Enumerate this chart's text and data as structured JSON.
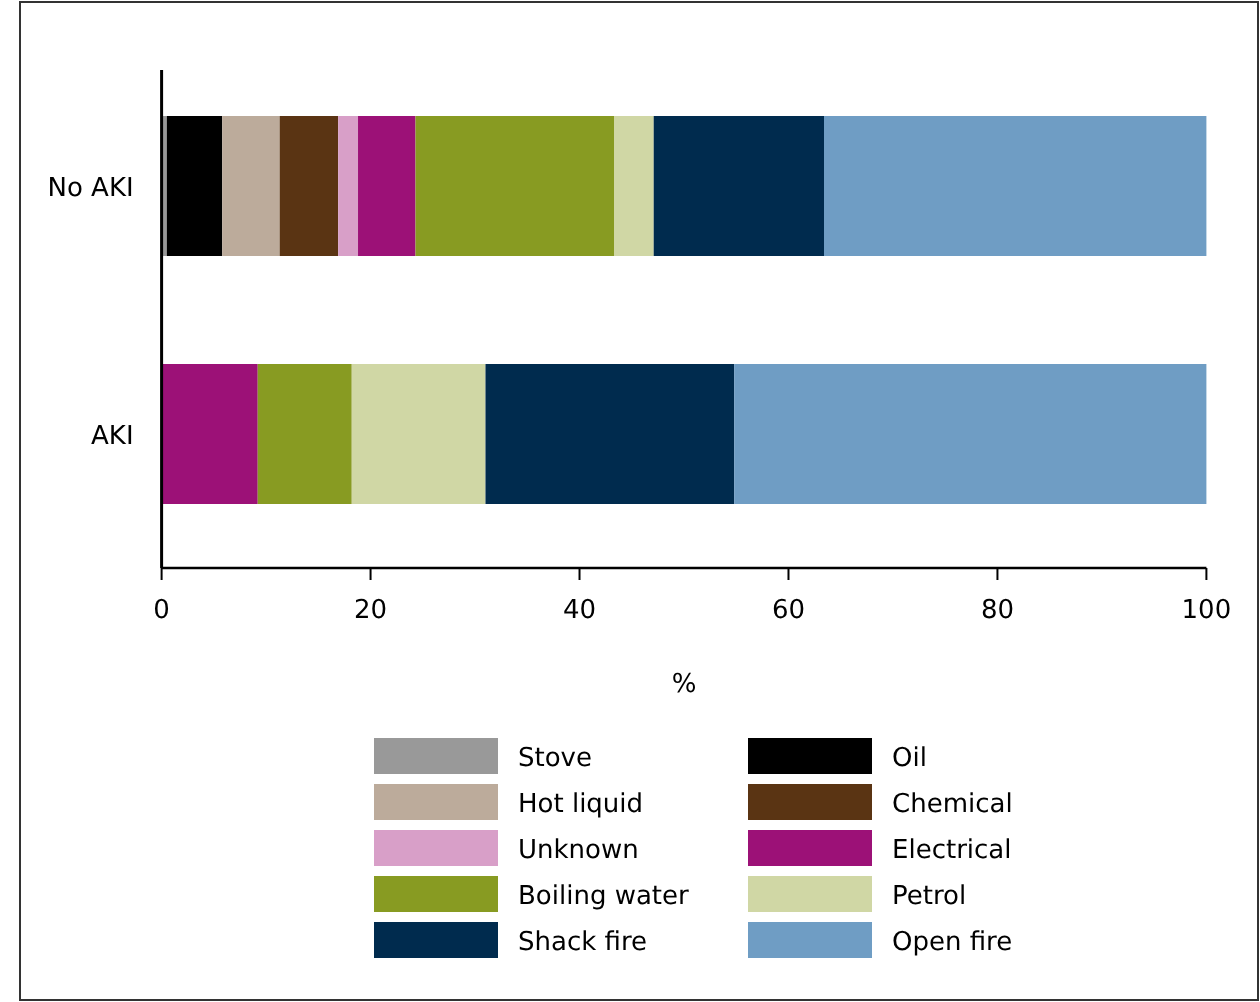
{
  "chart_data": {
    "type": "bar",
    "orientation": "horizontal",
    "stacked": true,
    "categories": [
      "No AKI",
      "AKI"
    ],
    "xlabel": "%",
    "xlim": [
      0,
      100
    ],
    "xticks": [
      0,
      20,
      40,
      60,
      80,
      100
    ],
    "legend": "bottom",
    "grid": false,
    "series": [
      {
        "name": "Stove",
        "color": "#999999",
        "values": [
          0.5,
          0
        ]
      },
      {
        "name": "Oil",
        "color": "#000000",
        "values": [
          5.3,
          0
        ]
      },
      {
        "name": "Hot liquid",
        "color": "#bcab9b",
        "values": [
          5.5,
          0
        ]
      },
      {
        "name": "Chemical",
        "color": "#5a3413",
        "values": [
          5.6,
          0
        ]
      },
      {
        "name": "Unknown",
        "color": "#d89fc8",
        "values": [
          1.9,
          0
        ]
      },
      {
        "name": "Electrical",
        "color": "#9c1177",
        "values": [
          5.5,
          9.2
        ]
      },
      {
        "name": "Boiling water",
        "color": "#889b22",
        "values": [
          19,
          9
        ]
      },
      {
        "name": "Petrol",
        "color": "#d0d7a5",
        "values": [
          3.8,
          12.8
        ]
      },
      {
        "name": "Shack fire",
        "color": "#002b4e",
        "values": [
          16.3,
          23.8
        ]
      },
      {
        "name": "Open fire",
        "color": "#6f9dc4",
        "values": [
          36.6,
          45.2
        ]
      }
    ]
  }
}
